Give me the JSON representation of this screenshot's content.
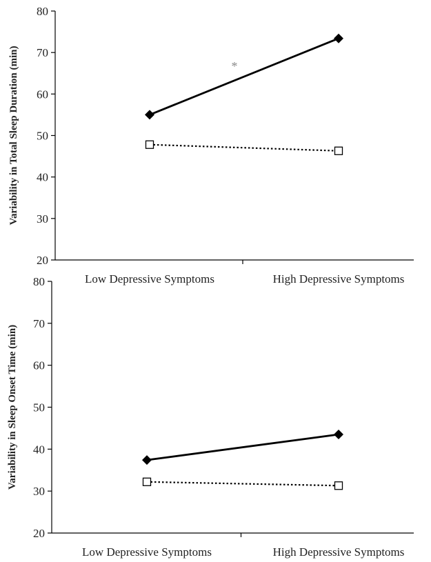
{
  "chart_data": [
    {
      "type": "line",
      "title": "",
      "xlabel": "",
      "ylabel": "Variability in Total Sleep Duration (min)",
      "categories": [
        "Low Depressive Symptoms",
        "High Depressive Symptoms"
      ],
      "ylim": [
        20,
        80
      ],
      "yticks": [
        20,
        30,
        40,
        50,
        60,
        70,
        80
      ],
      "grid": false,
      "legend": "none",
      "series": [
        {
          "values": [
            55.0,
            73.4
          ],
          "style": "solid",
          "marker": "filled-diamond",
          "color": "#000000"
        },
        {
          "values": [
            47.8,
            46.3
          ],
          "style": "dotted",
          "marker": "open-square",
          "color": "#000000"
        }
      ],
      "annotations": [
        {
          "text": "*"
        }
      ]
    },
    {
      "type": "line",
      "title": "",
      "xlabel": "",
      "ylabel": "Variability in Sleep Onset Time (min)",
      "categories": [
        "Low Depressive Symptoms",
        "High Depressive Symptoms"
      ],
      "ylim": [
        20,
        80
      ],
      "yticks": [
        20,
        30,
        40,
        50,
        60,
        70,
        80
      ],
      "grid": false,
      "legend": "none",
      "series": [
        {
          "values": [
            37.4,
            43.5
          ],
          "style": "solid",
          "marker": "filled-diamond",
          "color": "#000000"
        },
        {
          "values": [
            32.2,
            31.3
          ],
          "style": "dotted",
          "marker": "open-square",
          "color": "#000000"
        }
      ],
      "annotations": []
    }
  ]
}
